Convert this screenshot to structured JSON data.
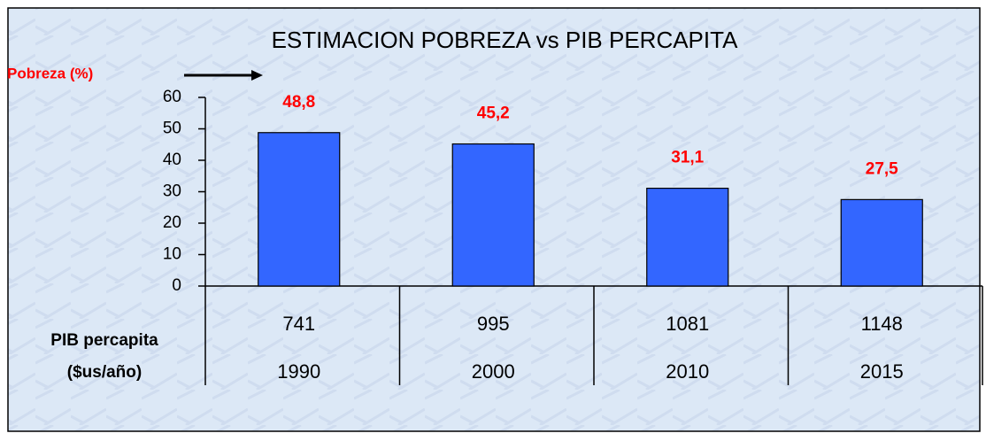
{
  "chart_data": {
    "type": "bar",
    "title": "ESTIMACION POBREZA vs PIB PERCAPITA",
    "ylabel": "Pobreza (%)",
    "xlabel": [
      "PIB percapita",
      "($us/año)"
    ],
    "categories": [
      "1990",
      "2000",
      "2010",
      "2015"
    ],
    "pib_percapita": [
      741,
      995,
      1081,
      1148
    ],
    "values": [
      48.8,
      45.2,
      31.1,
      27.5
    ],
    "value_labels": [
      "48,8",
      "45,2",
      "31,1",
      "27,5"
    ],
    "color": "#3366ff",
    "ylim": [
      0,
      60
    ],
    "yticks": [
      0,
      10,
      20,
      30,
      40,
      50,
      60
    ],
    "grid": false
  }
}
